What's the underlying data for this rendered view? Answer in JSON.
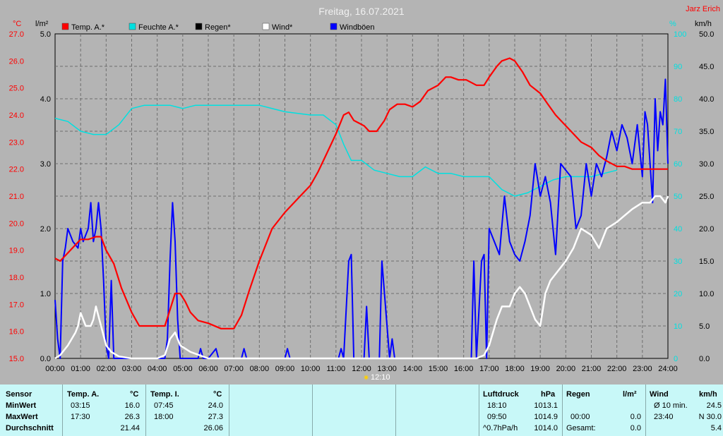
{
  "header": {
    "title": "Freitag, 16.07.2021",
    "author": "Jarz Erich",
    "sun_marker": "12:10"
  },
  "colors": {
    "background": "#b4b4b4",
    "temperature": "#ff0000",
    "humidity": "#00e0e0",
    "rain": "#000000",
    "wind": "#ffffff",
    "gusts": "#0000ff",
    "axis_temp": "#ff0000",
    "axis_humidity": "#00e0e0",
    "stats_bg": "#c8f8f8"
  },
  "chart_data": {
    "type": "line",
    "title": "Freitag, 16.07.2021",
    "x_ticks": [
      "00:00",
      "01:00",
      "02:00",
      "03:00",
      "04:00",
      "05:00",
      "06:00",
      "07:00",
      "08:00",
      "09:00",
      "10:00",
      "11:00",
      "12:00",
      "13:00",
      "14:00",
      "15:00",
      "16:00",
      "17:00",
      "18:00",
      "19:00",
      "20:00",
      "21:00",
      "22:00",
      "23:00",
      "24:00"
    ],
    "x_range_hours": [
      0,
      24
    ],
    "axes": {
      "temp": {
        "unit": "°C",
        "min": 15.0,
        "max": 27.0,
        "ticks": [
          "15.0",
          "16.0",
          "17.0",
          "18.0",
          "19.0",
          "20.0",
          "21.0",
          "22.0",
          "23.0",
          "24.0",
          "25.0",
          "26.0",
          "27.0"
        ]
      },
      "rain": {
        "unit": "l/m²",
        "min": 0.0,
        "max": 5.0,
        "ticks": [
          "0.0",
          "1.0",
          "2.0",
          "3.0",
          "4.0",
          "5.0"
        ]
      },
      "humidity": {
        "unit": "%",
        "min": 0,
        "max": 100,
        "ticks": [
          "0",
          "10",
          "20",
          "30",
          "40",
          "50",
          "60",
          "70",
          "80",
          "90",
          "100"
        ]
      },
      "wind": {
        "unit": "km/h",
        "min": 0.0,
        "max": 50.0,
        "ticks": [
          "0.0",
          "5.0",
          "10.0",
          "15.0",
          "20.0",
          "25.0",
          "30.0",
          "35.0",
          "40.0",
          "45.0",
          "50.0"
        ]
      }
    },
    "grid": true,
    "legend": [
      {
        "label": "Temp. A.*",
        "color": "#ff0000"
      },
      {
        "label": "Feuchte A.*",
        "color": "#00e0e0"
      },
      {
        "label": "Regen*",
        "color": "#000000"
      },
      {
        "label": "Wind*",
        "color": "#ffffff"
      },
      {
        "label": "Windböen",
        "color": "#0000ff"
      }
    ],
    "series": [
      {
        "name": "Temp. A.*",
        "axis": "temp",
        "color": "#ff0000",
        "x": [
          0,
          0.2,
          0.5,
          0.8,
          1.0,
          1.3,
          1.6,
          1.8,
          2.0,
          2.3,
          2.6,
          3.0,
          3.3,
          3.6,
          4.0,
          4.3,
          4.5,
          4.7,
          4.9,
          5.1,
          5.3,
          5.6,
          6.0,
          6.5,
          7.0,
          7.3,
          7.6,
          8.0,
          8.5,
          9.0,
          9.5,
          10.0,
          10.3,
          10.6,
          11.0,
          11.3,
          11.5,
          11.7,
          11.9,
          12.1,
          12.3,
          12.6,
          12.9,
          13.1,
          13.4,
          13.7,
          14.0,
          14.3,
          14.6,
          15.0,
          15.3,
          15.5,
          15.8,
          16.1,
          16.5,
          16.8,
          17.0,
          17.3,
          17.5,
          17.8,
          18.0,
          18.3,
          18.6,
          19.0,
          19.3,
          19.6,
          20.0,
          20.3,
          20.6,
          21.0,
          21.3,
          21.6,
          22.0,
          22.3,
          22.6,
          23.0,
          23.5,
          24.0
        ],
        "y": [
          18.7,
          18.6,
          18.9,
          19.2,
          19.4,
          19.4,
          19.5,
          19.5,
          19.0,
          18.5,
          17.6,
          16.7,
          16.2,
          16.2,
          16.2,
          16.2,
          16.8,
          17.4,
          17.4,
          17.1,
          16.7,
          16.4,
          16.3,
          16.1,
          16.1,
          16.6,
          17.5,
          18.6,
          19.8,
          20.4,
          20.9,
          21.4,
          21.9,
          22.5,
          23.3,
          24.0,
          24.1,
          23.8,
          23.7,
          23.6,
          23.4,
          23.4,
          23.8,
          24.2,
          24.4,
          24.4,
          24.3,
          24.5,
          24.9,
          25.1,
          25.4,
          25.4,
          25.3,
          25.3,
          25.1,
          25.1,
          25.4,
          25.8,
          26.0,
          26.1,
          26.0,
          25.6,
          25.1,
          24.8,
          24.4,
          24.0,
          23.6,
          23.3,
          23.0,
          22.8,
          22.5,
          22.3,
          22.1,
          22.1,
          22.0,
          22.0,
          22.0,
          22.0
        ]
      },
      {
        "name": "Feuchte A.*",
        "axis": "humidity",
        "color": "#00e0e0",
        "x": [
          0,
          0.5,
          1.0,
          1.5,
          2.0,
          2.5,
          3.0,
          3.5,
          4.0,
          4.5,
          5.0,
          5.5,
          6.0,
          7.0,
          8.0,
          9.0,
          10.0,
          10.5,
          11.0,
          11.3,
          11.6,
          12.0,
          12.5,
          13.0,
          13.5,
          14.0,
          14.5,
          15.0,
          15.5,
          16.0,
          16.5,
          17.0,
          17.5,
          18.0,
          18.5,
          19.0,
          19.5,
          20.0,
          20.5,
          21.0,
          21.5,
          22.0
        ],
        "y": [
          74,
          73,
          70,
          69,
          69,
          72,
          77,
          78,
          78,
          78,
          77,
          78,
          78,
          78,
          78,
          76,
          75,
          75,
          72,
          66,
          61,
          61,
          58,
          57,
          56,
          56,
          59,
          57,
          57,
          56,
          56,
          56,
          52,
          50,
          51,
          53,
          55,
          56,
          56,
          56,
          57,
          58
        ]
      },
      {
        "name": "Wind*",
        "axis": "wind",
        "color": "#ffffff",
        "x": [
          0,
          0.2,
          0.5,
          0.8,
          0.9,
          1.0,
          1.2,
          1.4,
          1.5,
          1.6,
          1.8,
          2.0,
          2.2,
          2.5,
          3.0,
          4.0,
          4.3,
          4.5,
          4.7,
          4.9,
          5.3,
          6.0,
          16.0,
          16.5,
          16.8,
          17.0,
          17.3,
          17.5,
          17.8,
          18.0,
          18.2,
          18.4,
          18.6,
          18.8,
          19.0,
          19.2,
          19.4,
          19.6,
          19.8,
          20.0,
          20.3,
          20.6,
          21.0,
          21.3,
          21.6,
          22.0,
          22.3,
          22.6,
          23.0,
          23.3,
          23.5,
          23.7,
          23.9,
          24.0
        ],
        "y": [
          0,
          0.5,
          2,
          4,
          5,
          7,
          5,
          5,
          6,
          8,
          5,
          2,
          1,
          0.3,
          0,
          0,
          0.5,
          3,
          4,
          2,
          1,
          0,
          0,
          0,
          0.5,
          2,
          6,
          8,
          8,
          10,
          11,
          10,
          8,
          6,
          5,
          10,
          12,
          13,
          14,
          15,
          17,
          20,
          19,
          17,
          20,
          21,
          22,
          23,
          24,
          24,
          25,
          25,
          24,
          25
        ]
      },
      {
        "name": "Windböen",
        "axis": "wind",
        "color": "#0000ff",
        "x": [
          0,
          0.1,
          0.2,
          0.3,
          0.4,
          0.5,
          0.7,
          0.9,
          1.0,
          1.1,
          1.3,
          1.4,
          1.5,
          1.6,
          1.7,
          1.8,
          1.9,
          2.0,
          2.1,
          2.2,
          2.3,
          2.4,
          4.3,
          4.4,
          4.5,
          4.6,
          4.7,
          4.8,
          4.9,
          5.0,
          5.6,
          5.7,
          5.8,
          6.0,
          6.3,
          6.4,
          6.5,
          7.3,
          7.4,
          7.5,
          9.0,
          9.1,
          9.2,
          11.1,
          11.2,
          11.3,
          11.5,
          11.6,
          11.7,
          11.9,
          12.1,
          12.2,
          12.3,
          12.6,
          12.7,
          12.8,
          13.1,
          13.2,
          13.3,
          13.5,
          13.6,
          16.3,
          16.4,
          16.5,
          16.7,
          16.8,
          16.9,
          17.0,
          17.2,
          17.4,
          17.6,
          17.8,
          18.0,
          18.2,
          18.4,
          18.6,
          18.8,
          19.0,
          19.2,
          19.4,
          19.6,
          19.8,
          20.0,
          20.2,
          20.4,
          20.6,
          20.8,
          21.0,
          21.2,
          21.4,
          21.6,
          21.8,
          22.0,
          22.2,
          22.4,
          22.6,
          22.8,
          23.0,
          23.1,
          23.2,
          23.4,
          23.5,
          23.6,
          23.7,
          23.8,
          23.9,
          24.0
        ],
        "y": [
          9,
          3,
          0,
          15,
          17,
          20,
          18,
          17,
          20,
          18,
          20,
          24,
          18,
          20,
          24,
          20,
          12,
          2,
          0,
          12,
          0,
          0,
          0,
          3,
          15,
          24,
          18,
          6,
          0,
          0,
          0,
          1.5,
          0,
          0,
          1.5,
          0,
          0,
          0,
          1.5,
          0,
          0,
          1.5,
          0,
          0,
          1.5,
          0,
          15,
          16,
          0,
          0,
          0,
          8,
          0,
          0,
          0,
          15,
          0,
          3,
          0,
          0,
          0,
          0,
          15,
          0,
          15,
          16,
          0,
          20,
          18,
          16,
          25,
          18,
          16,
          15,
          18,
          22,
          30,
          25,
          28,
          24,
          16,
          30,
          29,
          28,
          20,
          22,
          30,
          25,
          30,
          28,
          31,
          35,
          32,
          36,
          34,
          30,
          36,
          28,
          38,
          36,
          24,
          40,
          32,
          38,
          36,
          43,
          30
        ]
      },
      {
        "name": "Regen*",
        "axis": "rain",
        "color": "#000000",
        "x": [
          0,
          24
        ],
        "y": [
          0,
          0
        ]
      }
    ]
  },
  "stats": {
    "sensor": {
      "header": "Sensor",
      "rows": [
        "MinWert",
        "MaxWert",
        "Durchschnitt"
      ]
    },
    "temp_a": {
      "header": "Temp. A.",
      "unit": "°C",
      "min_time": "03:15",
      "min_val": "16.0",
      "max_time": "17:30",
      "max_val": "26.3",
      "avg": "21.44"
    },
    "temp_i": {
      "header": "Temp. I.",
      "unit": "°C",
      "min_time": "07:45",
      "min_val": "24.0",
      "max_time": "18:00",
      "max_val": "27.3",
      "avg": "26.06"
    },
    "pressure": {
      "header": "Luftdruck",
      "unit": "hPa",
      "min_time": "18:10",
      "min_val": "1013.1",
      "max_time": "09:50",
      "max_val": "1014.9",
      "trend_label": "^0.7hPa/h",
      "avg": "1014.0"
    },
    "rain": {
      "header": "Regen",
      "unit": "l/m²",
      "time": "00:00",
      "val": "0.0",
      "total_label": "Gesamt:",
      "total": "0.0"
    },
    "wind": {
      "header": "Wind",
      "unit": "km/h",
      "avg_label": "Ø 10 min.",
      "avg_val": "24.5",
      "max_time": "23:40",
      "max_val": "N 30.0",
      "avg": "5.4"
    }
  }
}
